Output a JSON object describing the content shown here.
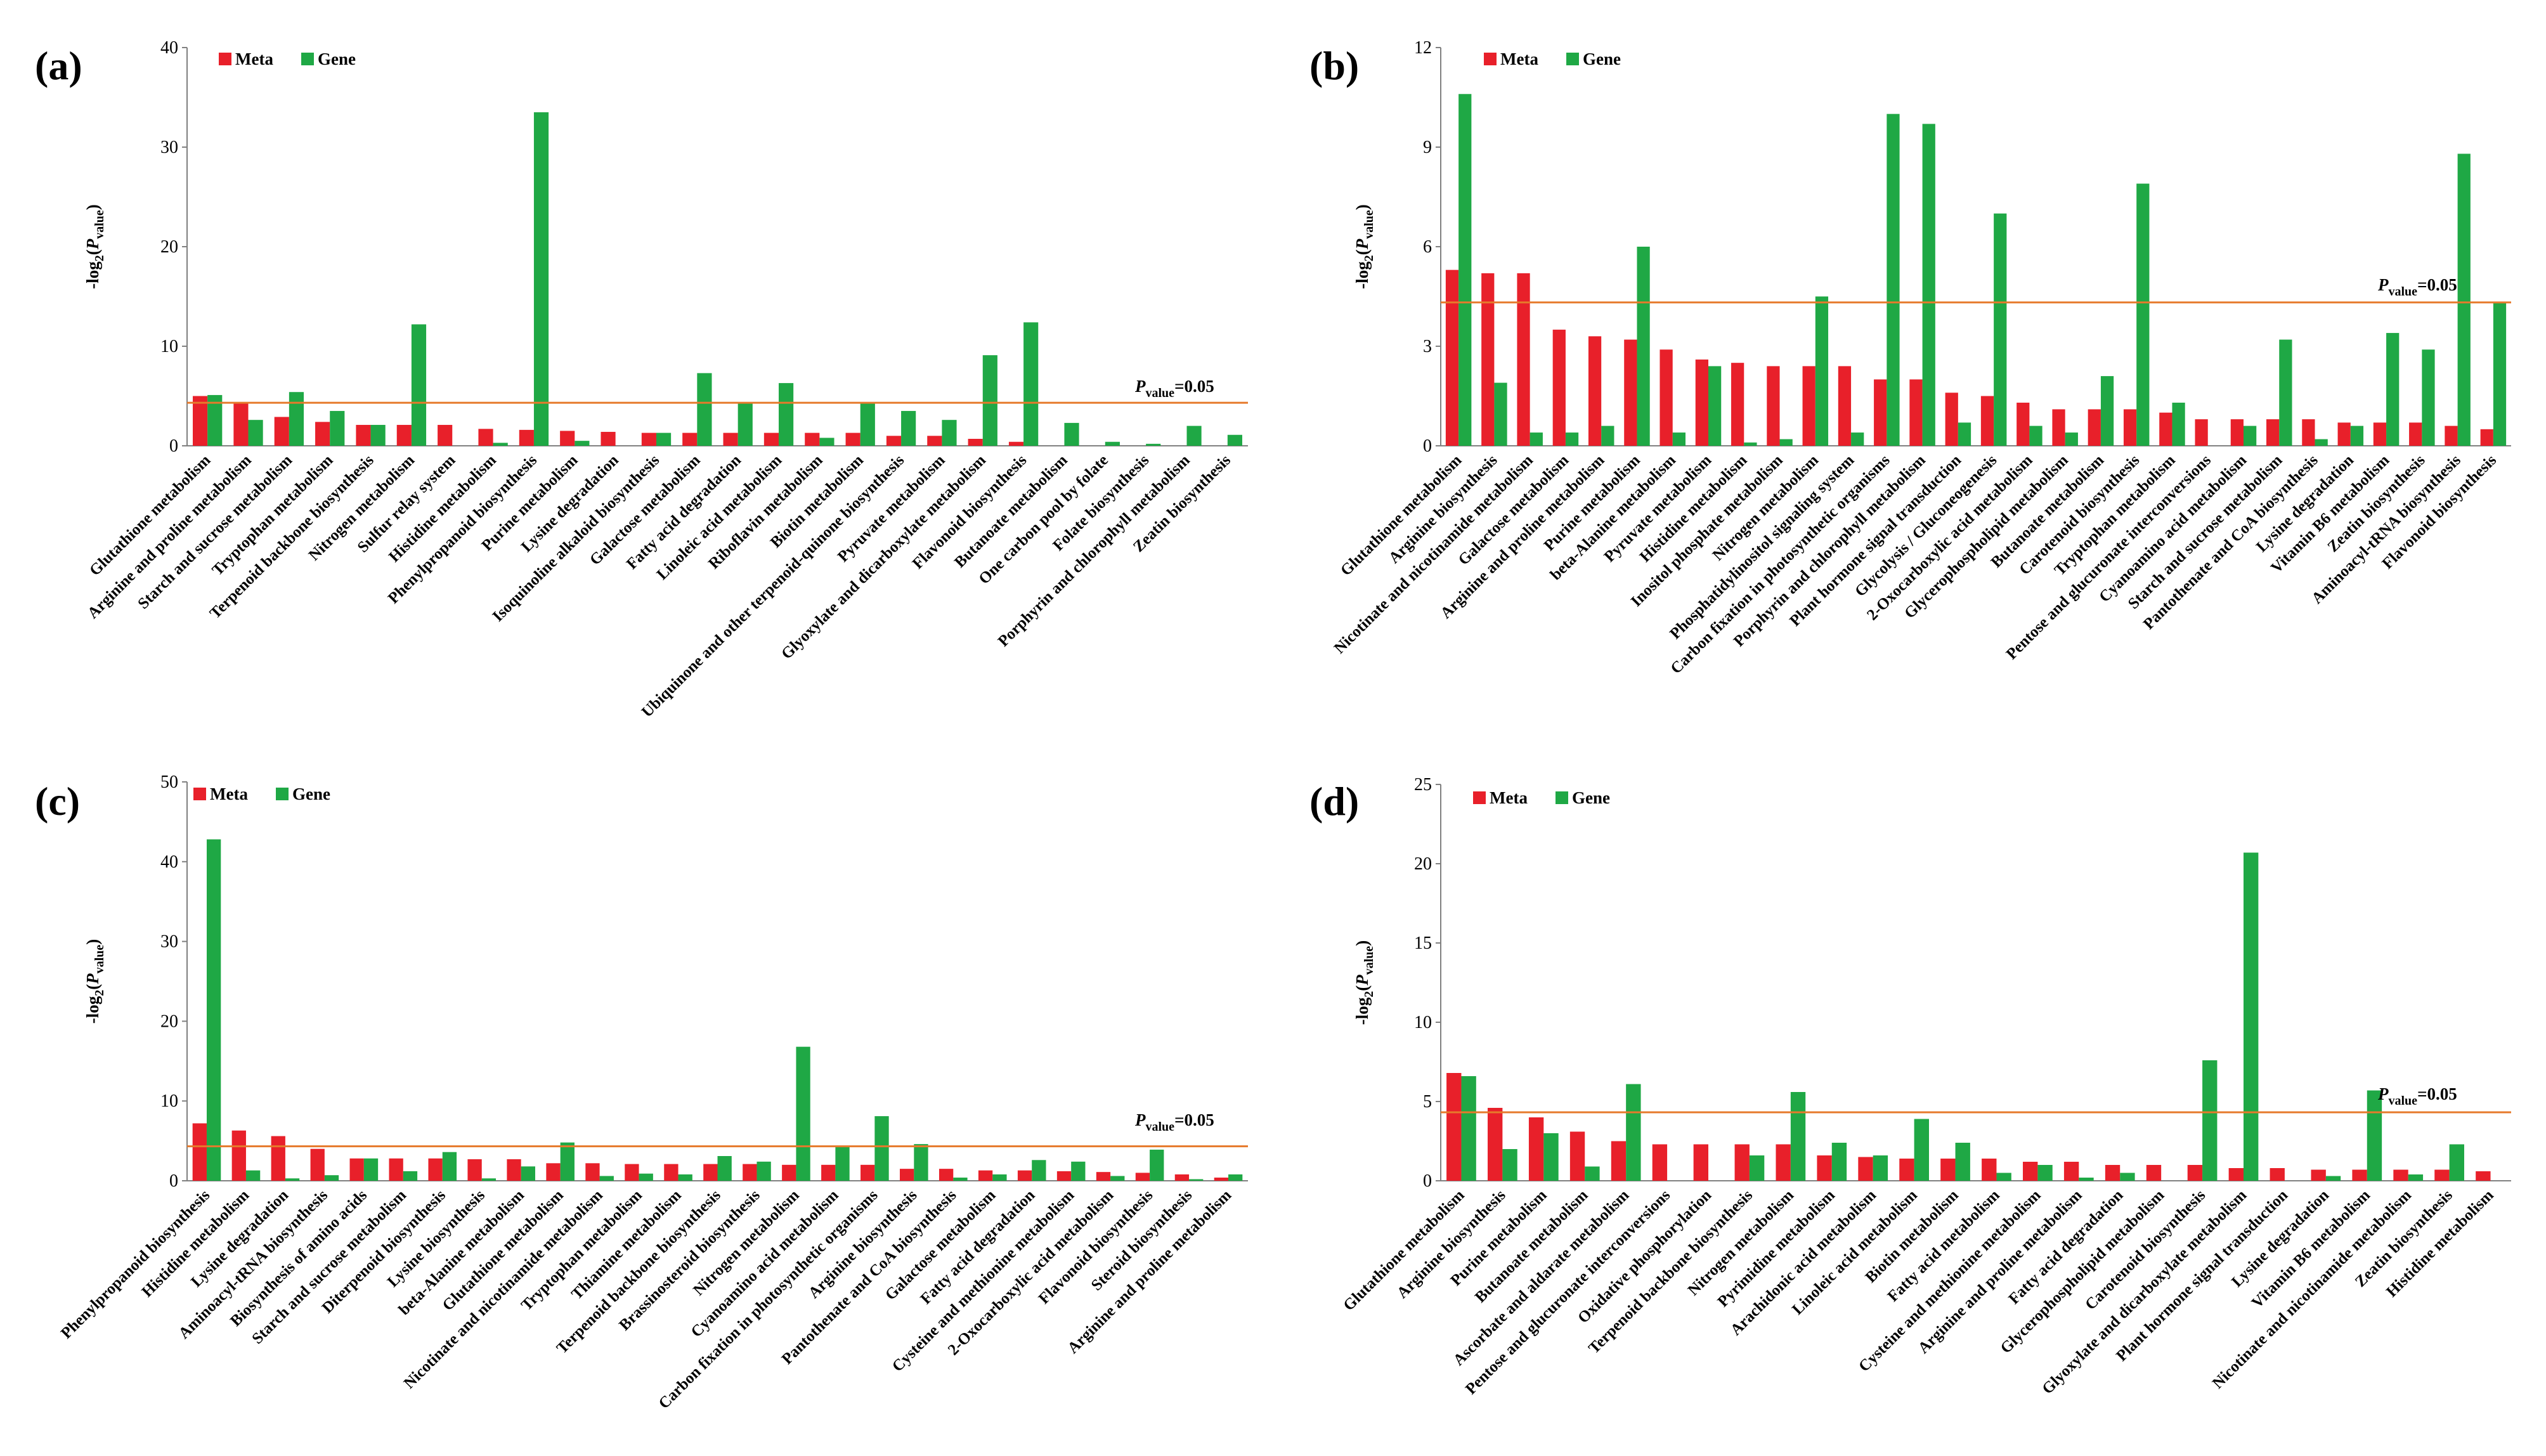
{
  "colors": {
    "meta": "#e8202a",
    "gene": "#1fa845",
    "threshold": "#e67a2b",
    "axis": "#808080"
  },
  "legend": {
    "meta": "Meta",
    "gene": "Gene"
  },
  "threshold_value": 4.32,
  "threshold_label": {
    "p": "P",
    "sub": "value",
    "rest": "=0.05"
  },
  "y_axis_label": {
    "prefix": "-log",
    "sub": "2",
    "open": "(",
    "p": "P",
    "psub": "value",
    "close": ")"
  },
  "chart_data": [
    {
      "panel": "(a)",
      "type": "bar",
      "ylim": [
        0,
        40
      ],
      "yticks": [
        0,
        10,
        20,
        30,
        40
      ],
      "categories": [
        "Glutathione metabolism",
        "Arginine and proline metabolism",
        "Starch and sucrose metabolism",
        "Tryptophan metabolism",
        "Terpenoid backbone biosynthesis",
        "Nitrogen metabolism",
        "Sulfur relay system",
        "Histidine metabolism",
        "Phenylpropanoid biosynthesis",
        "Purine metabolism",
        "Lysine degradation",
        "Isoquinoline alkaloid biosynthesis",
        "Galactose metabolism",
        "Fatty acid degradation",
        "Linoleic acid metabolism",
        "Riboflavin metabolism",
        "Biotin metabolism",
        "Ubiquinone and other terpenoid-quinone biosynthesis",
        "Pyruvate metabolism",
        "Glyoxylate and dicarboxylate metabolism",
        "Flavonoid biosynthesis",
        "Butanoate metabolism",
        "One carbon pool by folate",
        "Folate biosynthesis",
        "Porphyrin and chlorophyll metabolism",
        "Zeatin biosynthesis"
      ],
      "series": [
        {
          "name": "Meta",
          "values": [
            5.0,
            4.3,
            2.9,
            2.4,
            2.1,
            2.1,
            2.1,
            1.7,
            1.6,
            1.5,
            1.4,
            1.3,
            1.3,
            1.3,
            1.3,
            1.3,
            1.3,
            1.0,
            1.0,
            0.7,
            0.4,
            0,
            0,
            0,
            0,
            0
          ]
        },
        {
          "name": "Gene",
          "values": [
            5.1,
            2.6,
            5.4,
            3.5,
            2.1,
            12.2,
            0,
            0.3,
            33.5,
            0.5,
            0,
            1.3,
            7.3,
            4.3,
            6.3,
            0.8,
            4.3,
            3.5,
            2.6,
            9.1,
            12.4,
            2.3,
            0.4,
            0.2,
            2.0,
            1.1
          ]
        }
      ]
    },
    {
      "panel": "(b)",
      "type": "bar",
      "ylim": [
        0,
        12
      ],
      "yticks": [
        0,
        3,
        6,
        9,
        12
      ],
      "categories": [
        "Glutathione metabolism",
        "Arginine biosynthesis",
        "Nicotinate and nicotinamide metabolism",
        "Galactose metabolism",
        "Arginine and proline metabolism",
        "Purine metabolism",
        "beta-Alanine metabolism",
        "Pyruvate metabolism",
        "Histidine metabolism",
        "Inositol phosphate metabolism",
        "Nitrogen metabolism",
        "Phosphatidylinositol signaling system",
        "Carbon fixation in photosynthetic organisms",
        "Porphyrin and chlorophyll metabolism",
        "Plant hormone signal transduction",
        "Glycolysis / Gluconeogenesis",
        "2-Oxocarboxylic acid metabolism",
        "Glycerophospholipid metabolism",
        "Butanoate metabolism",
        "Carotenoid biosynthesis",
        "Tryptophan metabolism",
        "Pentose and glucuronate interconversions",
        "Cyanoamino acid metabolism",
        "Starch and sucrose metabolism",
        "Pantothenate and CoA biosynthesis",
        "Lysine degradation",
        "Vitamin B6 metabolism",
        "Zeatin biosynthesis",
        "Aminoacyl-tRNA biosynthesis",
        "Flavonoid biosynthesis"
      ],
      "series": [
        {
          "name": "Meta",
          "values": [
            5.3,
            5.2,
            5.2,
            3.5,
            3.3,
            3.2,
            2.9,
            2.6,
            2.5,
            2.4,
            2.4,
            2.4,
            2.0,
            2.0,
            1.6,
            1.5,
            1.3,
            1.1,
            1.1,
            1.1,
            1.0,
            0.8,
            0.8,
            0.8,
            0.8,
            0.7,
            0.7,
            0.7,
            0.6,
            0.5
          ]
        },
        {
          "name": "Gene",
          "values": [
            10.6,
            1.9,
            0.4,
            0.4,
            0.6,
            6.0,
            0.4,
            2.4,
            0.1,
            0.2,
            4.5,
            0.4,
            10.0,
            9.7,
            0.7,
            7.0,
            0.6,
            0.4,
            2.1,
            7.9,
            1.3,
            0,
            0.6,
            3.2,
            0.2,
            0.6,
            3.4,
            2.9,
            8.8,
            4.3
          ]
        }
      ]
    },
    {
      "panel": "(c)",
      "type": "bar",
      "ylim": [
        0,
        50
      ],
      "yticks": [
        0,
        10,
        20,
        30,
        40,
        50
      ],
      "categories": [
        "Phenylpropanoid biosynthesis",
        "Histidine metabolism",
        "Lysine degradation",
        "Aminoacyl-tRNA biosynthesis",
        "Biosynthesis of amino acids",
        "Starch and sucrose metabolism",
        "Diterpenoid biosynthesis",
        "Lysine biosynthesis",
        "beta-Alanine metabolism",
        "Glutathione metabolism",
        "Nicotinate and nicotinamide metabolism",
        "Tryptophan metabolism",
        "Thiamine metabolism",
        "Terpenoid backbone biosynthesis",
        "Brassinosteroid biosynthesis",
        "Nitrogen metabolism",
        "Cyanoamino acid metabolism",
        "Carbon fixation in photosynthetic organisms",
        "Arginine biosynthesis",
        "Pantothenate and CoA biosynthesis",
        "Galactose metabolism",
        "Fatty acid degradation",
        "Cysteine and methionine metabolism",
        "2-Oxocarboxylic acid metabolism",
        "Flavonoid biosynthesis",
        "Steroid biosynthesis",
        "Arginine and proline metabolism"
      ],
      "series": [
        {
          "name": "Meta",
          "values": [
            7.2,
            6.3,
            5.6,
            4.0,
            2.8,
            2.8,
            2.8,
            2.7,
            2.7,
            2.2,
            2.2,
            2.1,
            2.1,
            2.1,
            2.1,
            2.0,
            2.0,
            2.0,
            1.5,
            1.5,
            1.3,
            1.3,
            1.2,
            1.1,
            1.0,
            0.8,
            0.4
          ]
        },
        {
          "name": "Gene",
          "values": [
            42.8,
            1.3,
            0.3,
            0.7,
            2.8,
            1.2,
            3.6,
            0.3,
            1.8,
            4.8,
            0.6,
            0.9,
            0.8,
            3.1,
            2.4,
            16.8,
            4.3,
            8.1,
            4.6,
            0.4,
            0.8,
            2.6,
            2.4,
            0.6,
            3.9,
            0.2,
            0.8
          ]
        }
      ]
    },
    {
      "panel": "(d)",
      "type": "bar",
      "ylim": [
        0,
        25
      ],
      "yticks": [
        0,
        5,
        10,
        15,
        20,
        25
      ],
      "categories": [
        "Glutathione metabolism",
        "Arginine biosynthesis",
        "Purine metabolism",
        "Butanoate metabolism",
        "Ascorbate and aldarate metabolism",
        "Pentose and glucuronate interconversions",
        "Oxidative phosphorylation",
        "Terpenoid backbone biosynthesis",
        "Nitrogen metabolism",
        "Pyrimidine metabolism",
        "Arachidonic acid metabolism",
        "Linoleic acid metabolism",
        "Biotin metabolism",
        "Fatty acid metabolism",
        "Cysteine and methionine metabolism",
        "Arginine and proline metabolism",
        "Fatty acid degradation",
        "Glycerophospholipid metabolism",
        "Carotenoid biosynthesis",
        "Glyoxylate and dicarboxylate metabolism",
        "Plant hormone signal transduction",
        "Lysine degradation",
        "Vitamin B6 metabolism",
        "Nicotinate and nicotinamide metabolism",
        "Zeatin biosynthesis",
        "Histidine metabolism"
      ],
      "series": [
        {
          "name": "Meta",
          "values": [
            6.8,
            4.6,
            4.0,
            3.1,
            2.5,
            2.3,
            2.3,
            2.3,
            2.3,
            1.6,
            1.5,
            1.4,
            1.4,
            1.4,
            1.2,
            1.2,
            1.0,
            1.0,
            1.0,
            0.8,
            0.8,
            0.7,
            0.7,
            0.7,
            0.7,
            0.6
          ]
        },
        {
          "name": "Gene",
          "values": [
            6.6,
            2.0,
            3.0,
            0.9,
            6.1,
            0,
            0,
            1.6,
            5.6,
            2.4,
            1.6,
            3.9,
            2.4,
            0.5,
            1.0,
            0.2,
            0.5,
            0,
            7.6,
            20.7,
            0,
            0.3,
            5.7,
            0.4,
            2.3,
            0
          ]
        }
      ]
    }
  ]
}
